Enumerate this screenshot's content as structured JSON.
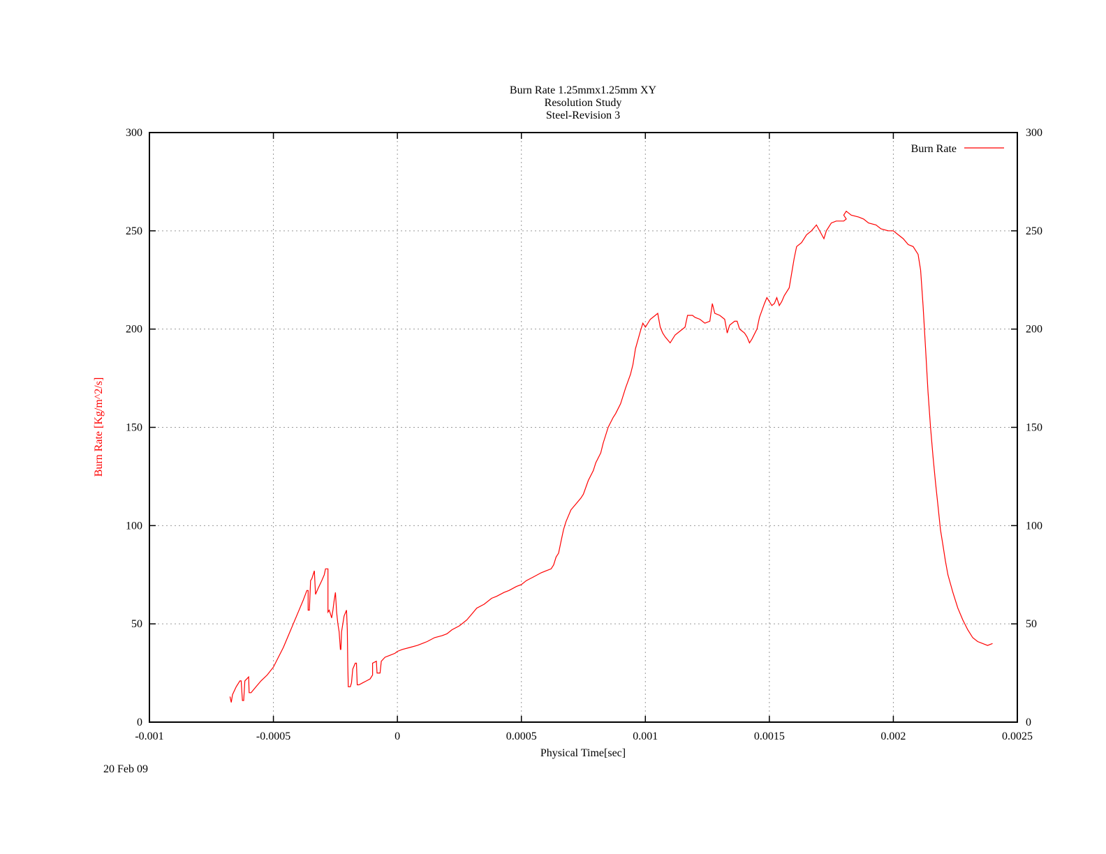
{
  "chart_data": {
    "type": "line",
    "title": [
      "Burn Rate 1.25mmx1.25mm XY",
      "Resolution Study",
      "Steel-Revision 3"
    ],
    "xlabel": "Physical Time[sec]",
    "ylabel": "Burn Rate  [Kg/m^2/s]",
    "xlim": [
      -0.001,
      0.0025
    ],
    "ylim": [
      0,
      300
    ],
    "y2lim": [
      0,
      300
    ],
    "x_ticks": [
      -0.001,
      -0.0005,
      0,
      0.0005,
      0.001,
      0.0015,
      0.002,
      0.0025
    ],
    "x_tick_labels": [
      "-0.001",
      "-0.0005",
      "0",
      "0.0005",
      "0.001",
      "0.0015",
      "0.002",
      "0.0025"
    ],
    "y_ticks": [
      0,
      50,
      100,
      150,
      200,
      250,
      300
    ],
    "y_tick_labels": [
      "0",
      "50",
      "100",
      "150",
      "200",
      "250",
      "300"
    ],
    "grid": true,
    "legend_position": "top-right",
    "series_color": "#ff0000",
    "series": [
      {
        "name": "Burn Rate",
        "points": [
          [
            -0.000675,
            13
          ],
          [
            -0.00067,
            10
          ],
          [
            -0.000665,
            14
          ],
          [
            -0.00065,
            18
          ],
          [
            -0.000635,
            21
          ],
          [
            -0.00063,
            21
          ],
          [
            -0.000625,
            11
          ],
          [
            -0.00062,
            11
          ],
          [
            -0.000615,
            21
          ],
          [
            -0.0006,
            23
          ],
          [
            -0.000598,
            15
          ],
          [
            -0.00059,
            15
          ],
          [
            -0.00057,
            18
          ],
          [
            -0.00055,
            21
          ],
          [
            -0.000525,
            24
          ],
          [
            -0.0005,
            28
          ],
          [
            -0.00048,
            33
          ],
          [
            -0.00046,
            38
          ],
          [
            -0.00044,
            44
          ],
          [
            -0.00042,
            50
          ],
          [
            -0.0004,
            56
          ],
          [
            -0.00038,
            62
          ],
          [
            -0.000365,
            67
          ],
          [
            -0.00036,
            67
          ],
          [
            -0.00036,
            57
          ],
          [
            -0.000355,
            57
          ],
          [
            -0.00035,
            72
          ],
          [
            -0.000345,
            73
          ],
          [
            -0.00034,
            75
          ],
          [
            -0.000335,
            77
          ],
          [
            -0.00033,
            65
          ],
          [
            -0.00032,
            68
          ],
          [
            -0.000305,
            72
          ],
          [
            -0.000295,
            75
          ],
          [
            -0.00029,
            78
          ],
          [
            -0.00028,
            78
          ],
          [
            -0.00028,
            56
          ],
          [
            -0.000275,
            57
          ],
          [
            -0.00027,
            55
          ],
          [
            -0.000265,
            53
          ],
          [
            -0.00026,
            57
          ],
          [
            -0.000255,
            62
          ],
          [
            -0.00025,
            66
          ],
          [
            -0.000245,
            56
          ],
          [
            -0.00024,
            50
          ],
          [
            -0.000235,
            46
          ],
          [
            -0.00023,
            37
          ],
          [
            -0.000228,
            37
          ],
          [
            -0.000225,
            46
          ],
          [
            -0.000215,
            54
          ],
          [
            -0.000205,
            57
          ],
          [
            -0.000202,
            47
          ],
          [
            -0.0002,
            29
          ],
          [
            -0.000198,
            18
          ],
          [
            -0.00019,
            18
          ],
          [
            -0.000185,
            20
          ],
          [
            -0.00018,
            27
          ],
          [
            -0.00017,
            30
          ],
          [
            -0.000165,
            30
          ],
          [
            -0.000162,
            19
          ],
          [
            -0.000155,
            19
          ],
          [
            -0.00014,
            20
          ],
          [
            -0.000125,
            21
          ],
          [
            -0.00011,
            22
          ],
          [
            -0.0001,
            24
          ],
          [
            -0.0001,
            30
          ],
          [
            -8.5e-05,
            31
          ],
          [
            -8.2e-05,
            25
          ],
          [
            -7e-05,
            25
          ],
          [
            -6.5e-05,
            31
          ],
          [
            -5e-05,
            33
          ],
          [
            -3e-05,
            34
          ],
          [
            -1e-05,
            35
          ],
          [
            0.0,
            36
          ],
          [
            2e-05,
            37
          ],
          [
            5e-05,
            38
          ],
          [
            8e-05,
            39
          ],
          [
            0.0001,
            40
          ],
          [
            0.00012,
            41
          ],
          [
            0.00015,
            43
          ],
          [
            0.00018,
            44
          ],
          [
            0.0002,
            45
          ],
          [
            0.00022,
            47
          ],
          [
            0.00025,
            49
          ],
          [
            0.00028,
            52
          ],
          [
            0.0003,
            55
          ],
          [
            0.00032,
            58
          ],
          [
            0.00035,
            60
          ],
          [
            0.00038,
            63
          ],
          [
            0.0004,
            64
          ],
          [
            0.00043,
            66
          ],
          [
            0.00045,
            67
          ],
          [
            0.00048,
            69
          ],
          [
            0.0005,
            70
          ],
          [
            0.00052,
            72
          ],
          [
            0.00055,
            74
          ],
          [
            0.00058,
            76
          ],
          [
            0.0006,
            77
          ],
          [
            0.00062,
            78
          ],
          [
            0.00063,
            80
          ],
          [
            0.00064,
            84
          ],
          [
            0.00065,
            86
          ],
          [
            0.00066,
            92
          ],
          [
            0.00067,
            98
          ],
          [
            0.00068,
            102
          ],
          [
            0.0007,
            108
          ],
          [
            0.00072,
            111
          ],
          [
            0.00074,
            114
          ],
          [
            0.00075,
            116
          ],
          [
            0.00077,
            123
          ],
          [
            0.00079,
            128
          ],
          [
            0.0008,
            132
          ],
          [
            0.00082,
            137
          ],
          [
            0.00083,
            142
          ],
          [
            0.00085,
            150
          ],
          [
            0.00087,
            155
          ],
          [
            0.00088,
            157
          ],
          [
            0.0009,
            162
          ],
          [
            0.00092,
            170
          ],
          [
            0.00094,
            177
          ],
          [
            0.00095,
            182
          ],
          [
            0.00096,
            190
          ],
          [
            0.00098,
            199
          ],
          [
            0.00099,
            203
          ],
          [
            0.001,
            201
          ],
          [
            0.00102,
            205
          ],
          [
            0.00104,
            207
          ],
          [
            0.00105,
            208
          ],
          [
            0.00106,
            201
          ],
          [
            0.00107,
            198
          ],
          [
            0.00108,
            196
          ],
          [
            0.0011,
            193
          ],
          [
            0.00112,
            197
          ],
          [
            0.00114,
            199
          ],
          [
            0.00116,
            201
          ],
          [
            0.00117,
            207
          ],
          [
            0.00119,
            207
          ],
          [
            0.0012,
            206
          ],
          [
            0.00122,
            205
          ],
          [
            0.00124,
            203
          ],
          [
            0.00126,
            204
          ],
          [
            0.00127,
            213
          ],
          [
            0.00128,
            208
          ],
          [
            0.0013,
            207
          ],
          [
            0.00132,
            205
          ],
          [
            0.00133,
            198
          ],
          [
            0.00134,
            202
          ],
          [
            0.00136,
            204
          ],
          [
            0.00137,
            204
          ],
          [
            0.00138,
            200
          ],
          [
            0.00139,
            199
          ],
          [
            0.0014,
            198
          ],
          [
            0.00141,
            196
          ],
          [
            0.00142,
            193
          ],
          [
            0.00143,
            195
          ],
          [
            0.00145,
            200
          ],
          [
            0.00146,
            206
          ],
          [
            0.00148,
            213
          ],
          [
            0.00149,
            216
          ],
          [
            0.0015,
            214
          ],
          [
            0.00151,
            212
          ],
          [
            0.00152,
            213
          ],
          [
            0.00153,
            216
          ],
          [
            0.00154,
            212
          ],
          [
            0.00155,
            214
          ],
          [
            0.00156,
            217
          ],
          [
            0.00158,
            221
          ],
          [
            0.0016,
            236
          ],
          [
            0.00161,
            242
          ],
          [
            0.00163,
            244
          ],
          [
            0.00165,
            248
          ],
          [
            0.00167,
            250
          ],
          [
            0.00169,
            253
          ],
          [
            0.00172,
            246
          ],
          [
            0.00173,
            250
          ],
          [
            0.00175,
            254
          ],
          [
            0.00177,
            255
          ],
          [
            0.0018,
            255
          ],
          [
            0.00181,
            256
          ],
          [
            0.0018,
            258
          ],
          [
            0.00181,
            260
          ],
          [
            0.00183,
            258
          ],
          [
            0.00186,
            257
          ],
          [
            0.00188,
            256
          ],
          [
            0.0019,
            254
          ],
          [
            0.00193,
            253
          ],
          [
            0.00195,
            251
          ],
          [
            0.00198,
            250
          ],
          [
            0.002,
            250
          ],
          [
            0.00202,
            248
          ],
          [
            0.00204,
            246
          ],
          [
            0.00206,
            243
          ],
          [
            0.00208,
            242
          ],
          [
            0.0021,
            238
          ],
          [
            0.00211,
            230
          ],
          [
            0.00212,
            212
          ],
          [
            0.00213,
            190
          ],
          [
            0.00214,
            168
          ],
          [
            0.00215,
            150
          ],
          [
            0.00216,
            135
          ],
          [
            0.00217,
            122
          ],
          [
            0.00218,
            110
          ],
          [
            0.00219,
            98
          ],
          [
            0.0022,
            90
          ],
          [
            0.00221,
            82
          ],
          [
            0.00222,
            75
          ],
          [
            0.00224,
            66
          ],
          [
            0.00226,
            58
          ],
          [
            0.00228,
            52
          ],
          [
            0.0023,
            47
          ],
          [
            0.00232,
            43
          ],
          [
            0.00234,
            41
          ],
          [
            0.00236,
            40
          ],
          [
            0.00238,
            39
          ],
          [
            0.0024,
            40
          ]
        ]
      }
    ]
  },
  "footer": {
    "date": "20 Feb 09"
  }
}
